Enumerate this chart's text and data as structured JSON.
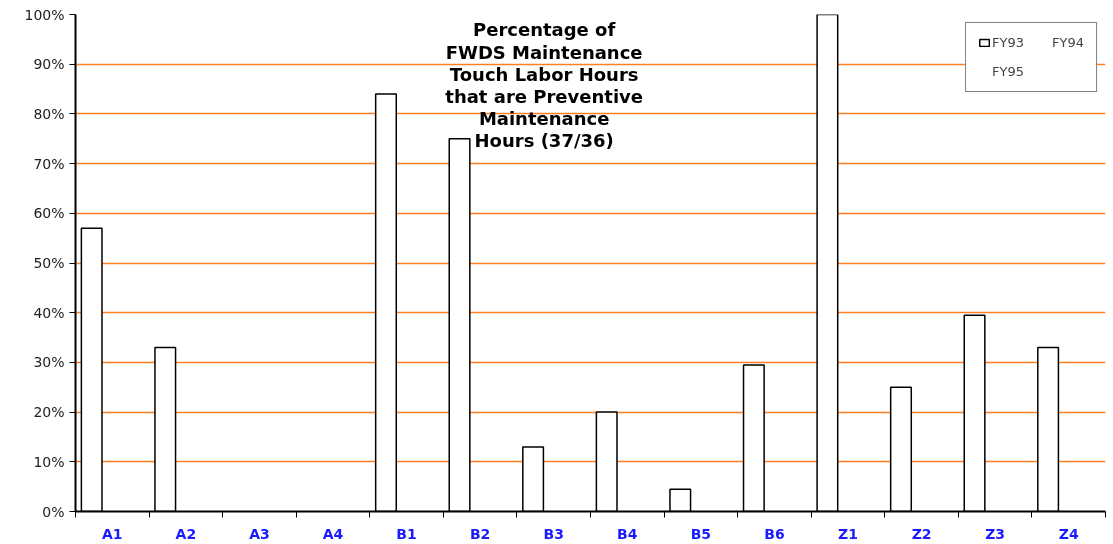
{
  "chart_data": {
    "type": "bar",
    "title": "Percentage of\nFWDS Maintenance\nTouch Labor Hours\nthat are Preventive\nMaintenance\nHours (37/36)",
    "categories": [
      "A1",
      "A2",
      "A3",
      "A4",
      "B1",
      "B2",
      "B3",
      "B4",
      "B5",
      "B6",
      "Z1",
      "Z2",
      "Z3",
      "Z4"
    ],
    "series": [
      {
        "name": "FY93",
        "color": "#ffffff",
        "values": [
          57,
          33,
          null,
          null,
          84,
          75,
          13,
          20,
          4.5,
          29.5,
          100,
          25,
          39.5,
          33
        ]
      },
      {
        "name": "FY94",
        "values": [
          null,
          null,
          null,
          null,
          null,
          null,
          null,
          null,
          null,
          null,
          null,
          null,
          null,
          null
        ]
      },
      {
        "name": "FY95",
        "values": [
          null,
          null,
          null,
          null,
          null,
          null,
          null,
          null,
          null,
          null,
          null,
          null,
          null,
          null
        ]
      }
    ],
    "ylim": [
      0,
      100
    ],
    "yticks": [
      {
        "value": 0,
        "label": "0%"
      },
      {
        "value": 10,
        "label": "10%"
      },
      {
        "value": 20,
        "label": "20%"
      },
      {
        "value": 30,
        "label": "30%"
      },
      {
        "value": 40,
        "label": "40%"
      },
      {
        "value": 50,
        "label": "50%"
      },
      {
        "value": 60,
        "label": "60%"
      },
      {
        "value": 70,
        "label": "70%"
      },
      {
        "value": 80,
        "label": "80%"
      },
      {
        "value": 90,
        "label": "90%"
      },
      {
        "value": 100,
        "label": "100%"
      }
    ],
    "grid": "y",
    "legend": "top right"
  }
}
